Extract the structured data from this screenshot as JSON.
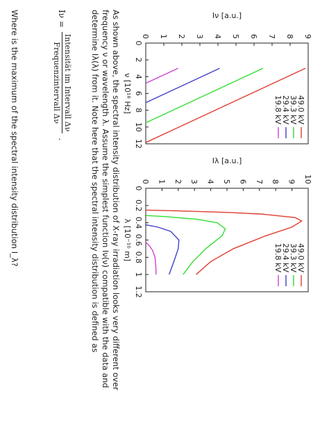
{
  "chart_data": [
    {
      "type": "line",
      "xlabel": "ν [10¹⁸ Hz]",
      "ylabel": "Iν [a.u.]",
      "xlim": [
        0,
        12
      ],
      "ylim": [
        0,
        9
      ],
      "xticks": [
        0,
        2,
        4,
        6,
        8,
        10,
        12
      ],
      "yticks": [
        0,
        1,
        2,
        3,
        4,
        5,
        6,
        7,
        8,
        9
      ],
      "legend": "upper right",
      "series": [
        {
          "name": "49.0 kV",
          "color": "#e03c31",
          "x": [
            3,
            11.85
          ],
          "values": [
            8.85,
            0
          ]
        },
        {
          "name": "39.3 kV",
          "color": "#33dd33",
          "x": [
            3,
            9.5
          ],
          "values": [
            6.5,
            0
          ]
        },
        {
          "name": "29.4 kV",
          "color": "#4040c8",
          "x": [
            3,
            7.1
          ],
          "values": [
            4.1,
            0
          ]
        },
        {
          "name": "19.8 kV",
          "color": "#d040d0",
          "x": [
            3,
            4.79
          ],
          "values": [
            1.79,
            0
          ]
        }
      ]
    },
    {
      "type": "line",
      "xlabel": "λ [10⁻¹⁰ m]",
      "ylabel": "Iλ [a.u.]",
      "xlim": [
        0,
        1.2
      ],
      "ylim": [
        0,
        10
      ],
      "xticks": [
        0,
        0.2,
        0.4,
        0.6,
        0.8,
        1,
        1.2
      ],
      "yticks": [
        0,
        1,
        2,
        3,
        4,
        5,
        6,
        7,
        8,
        9,
        10
      ],
      "legend": "upper right",
      "series": [
        {
          "name": "49.0 kV",
          "color": "#e03c31",
          "x": [
            0.253,
            0.26,
            0.28,
            0.3,
            0.34,
            0.38,
            0.45,
            0.55,
            0.7,
            0.85,
            1.0
          ],
          "values": [
            0,
            1.6,
            5.1,
            7.2,
            9.2,
            9.6,
            9.0,
            7.4,
            5.4,
            4.0,
            3.1
          ]
        },
        {
          "name": "39.3 kV",
          "color": "#33dd33",
          "x": [
            0.316,
            0.33,
            0.36,
            0.4,
            0.47,
            0.55,
            0.7,
            0.85,
            1.0
          ],
          "values": [
            0,
            1.3,
            3.2,
            4.4,
            4.9,
            4.7,
            3.7,
            2.9,
            2.3
          ]
        },
        {
          "name": "29.4 kV",
          "color": "#4040c8",
          "x": [
            0.423,
            0.45,
            0.5,
            0.6,
            0.7,
            0.85,
            1.0
          ],
          "values": [
            0,
            0.74,
            1.54,
            2.04,
            2.0,
            1.73,
            1.44
          ]
        },
        {
          "name": "19.8 kV",
          "color": "#d040d0",
          "x": [
            0.626,
            0.66,
            0.72,
            0.8,
            0.94,
            1.0
          ],
          "values": [
            0,
            0.2,
            0.42,
            0.57,
            0.63,
            0.63
          ]
        }
      ]
    }
  ],
  "text": {
    "paragraph": "As shown above, the spectral intensity distribution of X-ray irradiation looks very different over frequency ν or wavelength λ. Assume the simplest function Iν(ν) compatible with the data and determine Iλ(λ) from it. Note here that the spectral intensity distribution is defined as",
    "formula": {
      "lhs": "Iν =",
      "numerator": "Intensität im Intervall Δν",
      "denominator": "Frequenzintervall Δν",
      "end": "."
    },
    "question": "Where is the maximum of the spectral intensity distribution I_λ?"
  }
}
